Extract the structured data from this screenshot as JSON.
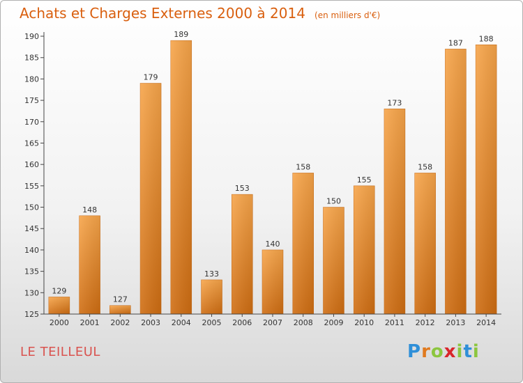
{
  "chart_data": {
    "type": "bar",
    "title": "Achats et Charges Externes 2000 à 2014",
    "subtitle": "(en milliers d'€)",
    "categories": [
      "2000",
      "2001",
      "2002",
      "2003",
      "2004",
      "2005",
      "2006",
      "2007",
      "2008",
      "2009",
      "2010",
      "2011",
      "2012",
      "2013",
      "2014"
    ],
    "values": [
      129,
      148,
      127,
      179,
      189,
      133,
      153,
      140,
      158,
      150,
      155,
      173,
      158,
      187,
      188
    ],
    "ylim": [
      125,
      190
    ],
    "yticks": [
      125,
      130,
      135,
      140,
      145,
      150,
      155,
      160,
      165,
      170,
      175,
      180,
      185,
      190
    ],
    "grid": false,
    "bar_color": "#f08a24",
    "xlabel": "",
    "ylabel": ""
  },
  "footer": {
    "commune": "LE TEILLEUL",
    "brand": {
      "letters": [
        "P",
        "r",
        "o",
        "x",
        "i",
        "t",
        "i"
      ],
      "colors": [
        "#2f8fd8",
        "#e07a1f",
        "#8cc63f",
        "#d9262b",
        "#8cc63f",
        "#2f8fd8",
        "#8cc63f"
      ]
    }
  }
}
